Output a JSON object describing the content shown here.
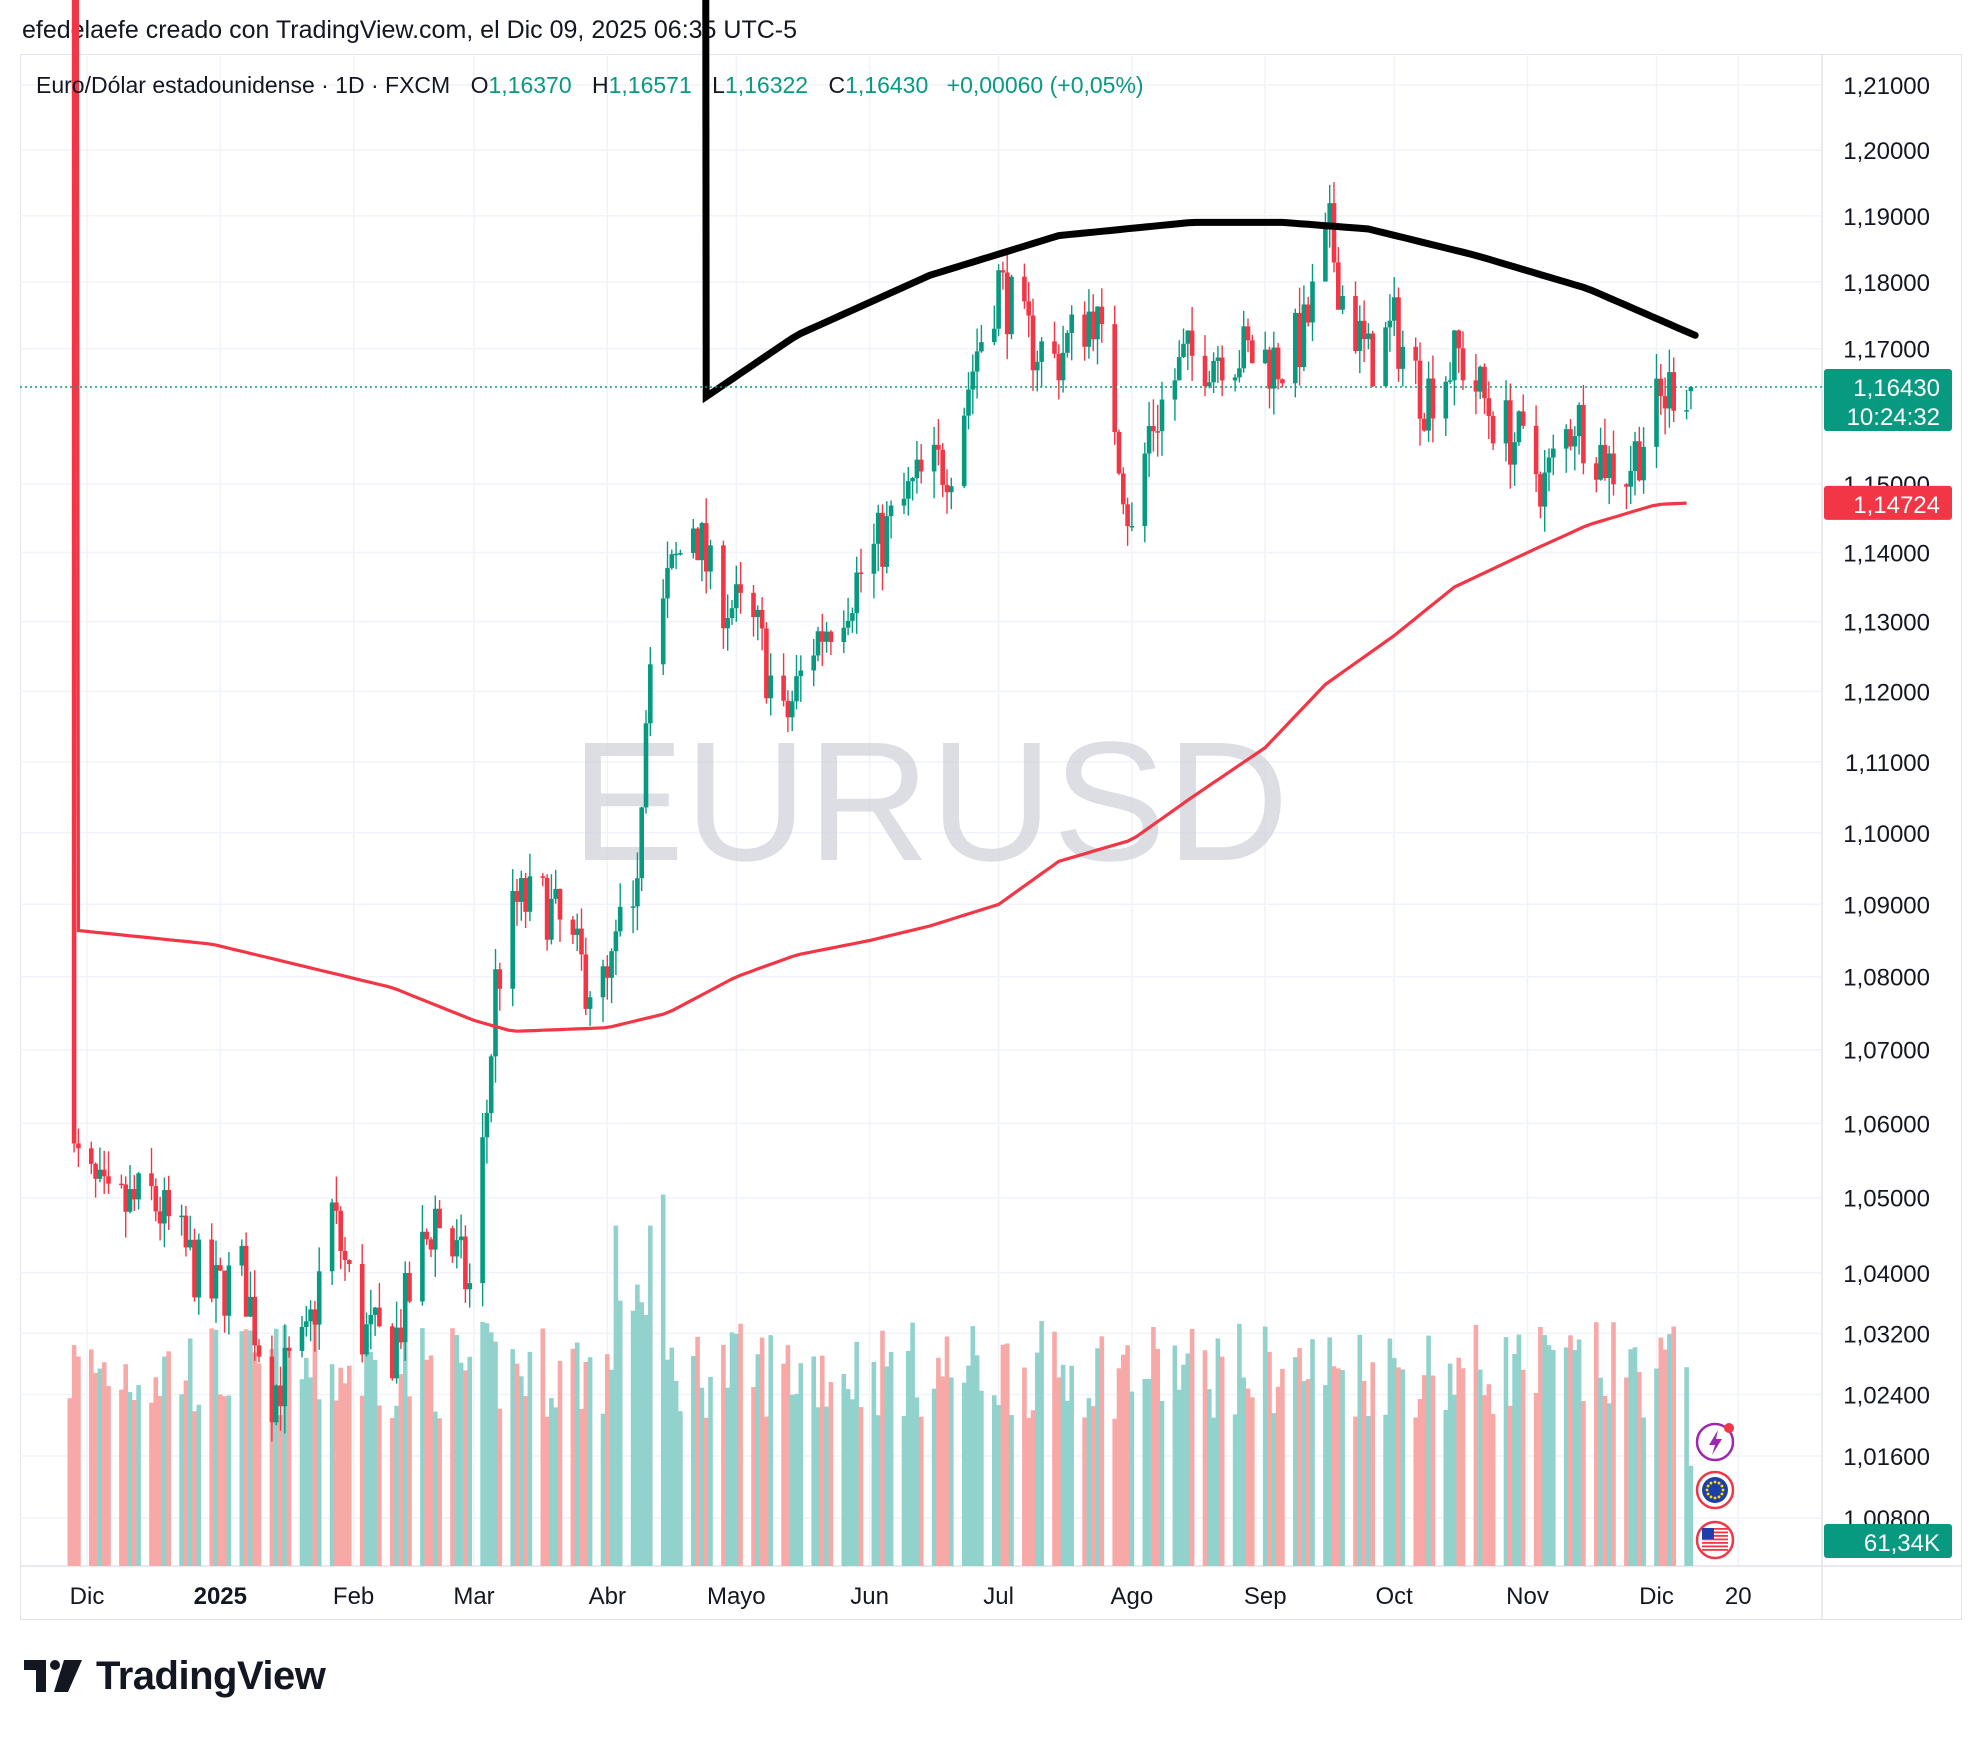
{
  "caption": "efedelaefe creado con TradingView.com, el Dic 09, 2025 06:35 UTC-5",
  "legend": {
    "symbol": "Euro/Dólar estadounidense · 1D · FXCM",
    "open_label": "O",
    "open": "1,16370",
    "high_label": "H",
    "high": "1,16571",
    "low_label": "L",
    "low": "1,16322",
    "close_label": "C",
    "close": "1,16430",
    "change": "+0,00060 (+0,05%)"
  },
  "watermark": "EURUSD",
  "brand": "TradingView",
  "colors": {
    "up": "#089981",
    "down": "#f23645",
    "up_volume": "#92d2cc",
    "down_volume": "#f7a9a7",
    "ma": "#f23645",
    "arc": "#000000",
    "grid": "#f0f3fa"
  },
  "badges": {
    "price": "1,16430",
    "countdown": "10:24:32",
    "ma_value": "1,14724",
    "volume": "61,34K"
  },
  "icons": [
    "lightning-icon",
    "eu-flag-icon",
    "us-flag-icon"
  ],
  "chart_data": {
    "type": "candlestick",
    "title": "EURUSD",
    "y_axis": {
      "scale": "log",
      "labels": [
        "1,21000",
        "1,20000",
        "1,19000",
        "1,18000",
        "1,17000",
        "1,15000",
        "1,14000",
        "1,13000",
        "1,12000",
        "1,11000",
        "1,10000",
        "1,09000",
        "1,08000",
        "1,07000",
        "1,06000",
        "1,05000",
        "1,04000",
        "1,03200",
        "1,02400",
        "1,01600",
        "1,00800"
      ],
      "values": [
        1.21,
        1.2,
        1.19,
        1.18,
        1.17,
        1.15,
        1.14,
        1.13,
        1.12,
        1.11,
        1.1,
        1.09,
        1.08,
        1.07,
        1.06,
        1.05,
        1.04,
        1.032,
        1.024,
        1.016,
        1.008
      ]
    },
    "x_axis": {
      "labels": [
        "Dic",
        "2025",
        "Feb",
        "Mar",
        "Abr",
        "Mayo",
        "Jun",
        "Jul",
        "Ago",
        "Sep",
        "Oct",
        "Nov",
        "Dic",
        "20"
      ],
      "dates": [
        "2024-12-01",
        "2025-01-01",
        "2025-02-01",
        "2025-03-01",
        "2025-04-01",
        "2025-05-01",
        "2025-06-01",
        "2025-07-01",
        "2025-08-01",
        "2025-09-01",
        "2025-10-01",
        "2025-11-01",
        "2025-12-01",
        "2025-12-20"
      ]
    },
    "close_path": {
      "dates": [
        "2024-11-27",
        "2024-12-06",
        "2024-12-16",
        "2024-12-30",
        "2025-01-06",
        "2025-01-13",
        "2025-01-21",
        "2025-01-27",
        "2025-02-03",
        "2025-02-10",
        "2025-02-20",
        "2025-02-28",
        "2025-03-04",
        "2025-03-06",
        "2025-03-11",
        "2025-03-18",
        "2025-03-27",
        "2025-04-01",
        "2025-04-08",
        "2025-04-11",
        "2025-04-15",
        "2025-04-21",
        "2025-04-25",
        "2025-05-06",
        "2025-05-12",
        "2025-05-19",
        "2025-05-29",
        "2025-06-05",
        "2025-06-12",
        "2025-06-20",
        "2025-06-26",
        "2025-07-01",
        "2025-07-07",
        "2025-07-14",
        "2025-07-23",
        "2025-07-28",
        "2025-08-01",
        "2025-08-05",
        "2025-08-13",
        "2025-08-22",
        "2025-08-29",
        "2025-09-05",
        "2025-09-10",
        "2025-09-16",
        "2025-09-19",
        "2025-09-25",
        "2025-10-01",
        "2025-10-08",
        "2025-10-16",
        "2025-10-24",
        "2025-10-30",
        "2025-11-05",
        "2025-11-12",
        "2025-11-20",
        "2025-11-24",
        "2025-12-02",
        "2025-12-05",
        "2025-12-09"
      ],
      "values": [
        1.056,
        1.048,
        1.05,
        1.037,
        1.04,
        1.0245,
        1.03,
        1.048,
        1.032,
        1.03,
        1.048,
        1.038,
        1.062,
        1.079,
        1.09,
        1.09,
        1.08,
        1.078,
        1.096,
        1.128,
        1.135,
        1.145,
        1.136,
        1.128,
        1.115,
        1.127,
        1.136,
        1.143,
        1.15,
        1.154,
        1.17,
        1.18,
        1.172,
        1.168,
        1.176,
        1.16,
        1.142,
        1.158,
        1.168,
        1.17,
        1.169,
        1.168,
        1.172,
        1.187,
        1.178,
        1.168,
        1.173,
        1.163,
        1.169,
        1.16,
        1.156,
        1.15,
        1.16,
        1.153,
        1.152,
        1.162,
        1.165,
        1.1643
      ]
    },
    "ma_path": {
      "dates": [
        "2024-11-27",
        "2024-12-30",
        "2025-01-20",
        "2025-02-10",
        "2025-03-01",
        "2025-03-10",
        "2025-04-01",
        "2025-04-15",
        "2025-05-01",
        "2025-05-15",
        "2025-06-01",
        "2025-06-15",
        "2025-07-01",
        "2025-07-15",
        "2025-08-01",
        "2025-08-15",
        "2025-09-01",
        "2025-09-15",
        "2025-10-01",
        "2025-10-15",
        "2025-11-01",
        "2025-11-15",
        "2025-12-01",
        "2025-12-09"
      ],
      "values": [
        1.0865,
        1.0845,
        1.0815,
        1.0785,
        1.074,
        1.0725,
        1.073,
        1.075,
        1.08,
        1.083,
        1.085,
        1.087,
        1.09,
        1.096,
        1.099,
        1.105,
        1.112,
        1.121,
        1.128,
        1.135,
        1.14,
        1.144,
        1.147,
        1.14724
      ]
    },
    "arc_path": {
      "dates": [
        "2025-04-22",
        "2025-05-15",
        "2025-06-15",
        "2025-07-15",
        "2025-08-15",
        "2025-09-05",
        "2025-09-25",
        "2025-10-20",
        "2025-11-15",
        "2025-12-10"
      ],
      "values": [
        1.162,
        1.172,
        1.181,
        1.187,
        1.189,
        1.189,
        1.188,
        1.184,
        1.179,
        1.172
      ]
    },
    "volume_max": 230000,
    "last_volume": 61340
  }
}
